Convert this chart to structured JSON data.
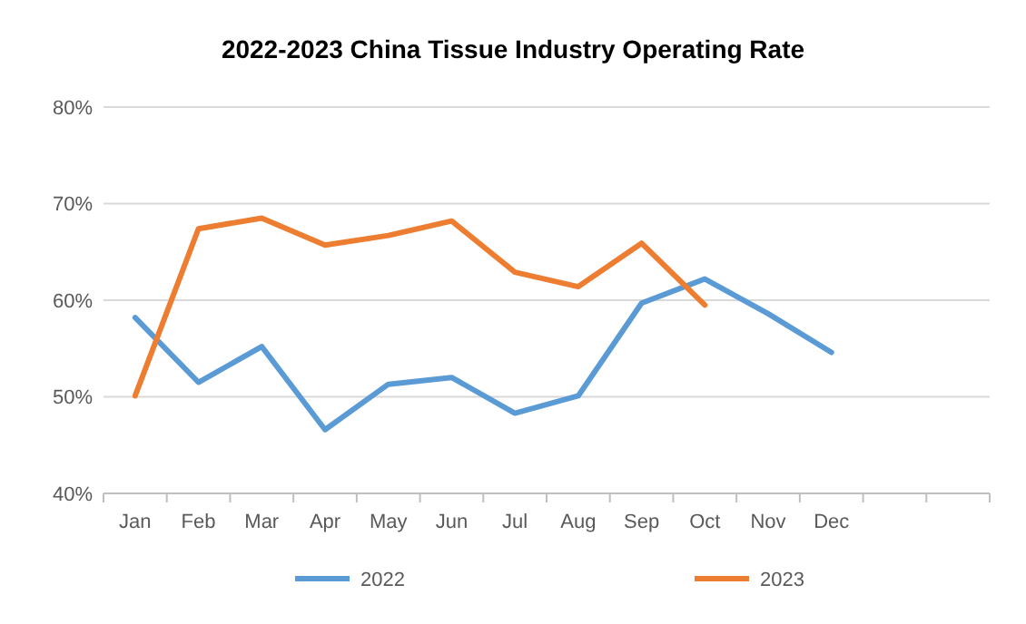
{
  "chart_data": {
    "type": "line",
    "title": "2022-2023 China Tissue Industry Operating Rate",
    "categories": [
      "Jan",
      "Feb",
      "Mar",
      "Apr",
      "May",
      "Jun",
      "Jul",
      "Aug",
      "Sep",
      "Oct",
      "Nov",
      "Dec",
      null,
      null
    ],
    "series": [
      {
        "name": "2022",
        "color": "#5b9bd5",
        "values": [
          58.2,
          51.5,
          55.2,
          46.6,
          51.3,
          52.0,
          48.3,
          50.1,
          59.7,
          62.2,
          58.6,
          54.6,
          null,
          null
        ]
      },
      {
        "name": "2023",
        "color": "#ed7d31",
        "values": [
          50.1,
          67.4,
          68.5,
          65.7,
          66.7,
          68.2,
          62.9,
          61.4,
          65.9,
          59.5,
          null,
          null,
          null,
          null
        ]
      }
    ],
    "ylim": [
      40,
      80
    ],
    "yticks": [
      {
        "value": 40,
        "label": "40%"
      },
      {
        "value": 50,
        "label": "50%"
      },
      {
        "value": 60,
        "label": "60%"
      },
      {
        "value": 70,
        "label": "70%"
      },
      {
        "value": 80,
        "label": "80%"
      }
    ],
    "grid": "y",
    "legend": "bottom",
    "marker": "none",
    "line_style": "solid"
  }
}
